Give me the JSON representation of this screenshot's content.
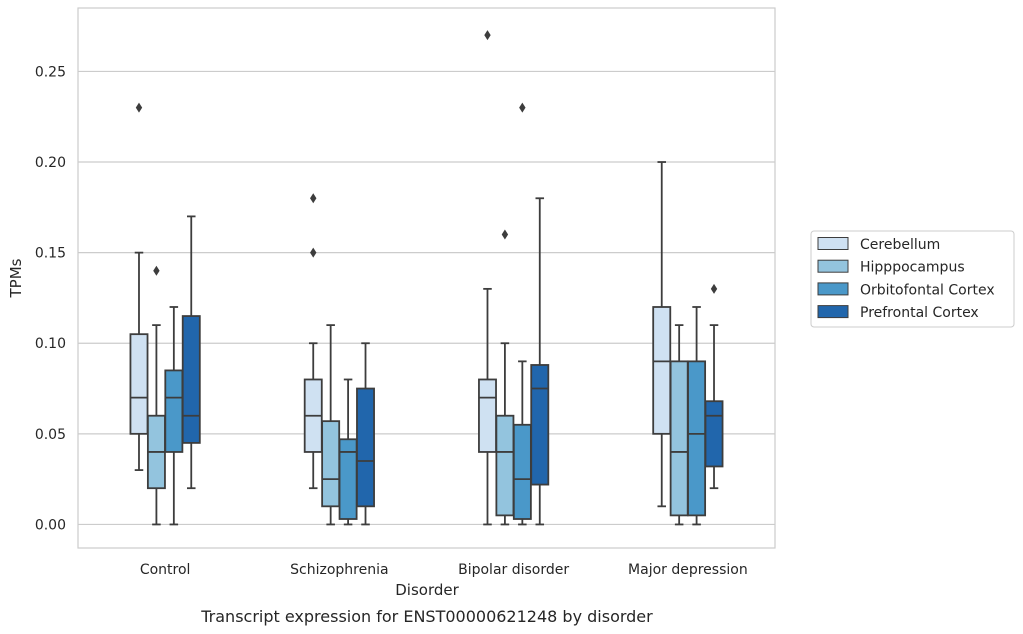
{
  "chart_data": {
    "type": "box",
    "title": "",
    "caption": "Transcript expression for ENST00000621248 by disorder",
    "xlabel": "Disorder",
    "ylabel": "TPMs",
    "ylim": [
      -0.013,
      0.285
    ],
    "yticks": [
      0.0,
      0.05,
      0.1,
      0.15,
      0.2,
      0.25
    ],
    "ytick_labels": [
      "0.00",
      "0.05",
      "0.10",
      "0.15",
      "0.20",
      "0.25"
    ],
    "categories": [
      "Control",
      "Schizophrenia",
      "Bipolar disorder",
      "Major depression"
    ],
    "grid": "horizontal",
    "legend_position": "right",
    "series": [
      {
        "name": "Cerebellum",
        "color": "#cfe1f2",
        "boxes": [
          {
            "whislo": 0.03,
            "q1": 0.05,
            "med": 0.07,
            "q3": 0.105,
            "whishi": 0.15,
            "fliers": [
              0.23
            ]
          },
          {
            "whislo": 0.02,
            "q1": 0.04,
            "med": 0.06,
            "q3": 0.08,
            "whishi": 0.1,
            "fliers": [
              0.15,
              0.18
            ]
          },
          {
            "whislo": 0.0,
            "q1": 0.04,
            "med": 0.07,
            "q3": 0.08,
            "whishi": 0.13,
            "fliers": [
              0.27
            ]
          },
          {
            "whislo": 0.01,
            "q1": 0.05,
            "med": 0.09,
            "q3": 0.12,
            "whishi": 0.2,
            "fliers": []
          }
        ]
      },
      {
        "name": "Hipppocampus",
        "color": "#93c4de",
        "boxes": [
          {
            "whislo": 0.0,
            "q1": 0.02,
            "med": 0.04,
            "q3": 0.06,
            "whishi": 0.11,
            "fliers": [
              0.14
            ]
          },
          {
            "whislo": 0.0,
            "q1": 0.01,
            "med": 0.025,
            "q3": 0.057,
            "whishi": 0.11,
            "fliers": []
          },
          {
            "whislo": 0.0,
            "q1": 0.005,
            "med": 0.04,
            "q3": 0.06,
            "whishi": 0.1,
            "fliers": [
              0.16
            ]
          },
          {
            "whislo": 0.0,
            "q1": 0.005,
            "med": 0.04,
            "q3": 0.09,
            "whishi": 0.11,
            "fliers": []
          }
        ]
      },
      {
        "name": "Orbitofontal Cortex",
        "color": "#4a98c9",
        "boxes": [
          {
            "whislo": 0.0,
            "q1": 0.04,
            "med": 0.07,
            "q3": 0.085,
            "whishi": 0.12,
            "fliers": []
          },
          {
            "whislo": 0.0,
            "q1": 0.003,
            "med": 0.04,
            "q3": 0.047,
            "whishi": 0.08,
            "fliers": []
          },
          {
            "whislo": 0.0,
            "q1": 0.003,
            "med": 0.025,
            "q3": 0.055,
            "whishi": 0.09,
            "fliers": [
              0.23
            ]
          },
          {
            "whislo": 0.0,
            "q1": 0.005,
            "med": 0.05,
            "q3": 0.09,
            "whishi": 0.12,
            "fliers": []
          }
        ]
      },
      {
        "name": "Prefrontal Cortex",
        "color": "#2166ac",
        "boxes": [
          {
            "whislo": 0.02,
            "q1": 0.045,
            "med": 0.06,
            "q3": 0.115,
            "whishi": 0.17,
            "fliers": []
          },
          {
            "whislo": 0.0,
            "q1": 0.01,
            "med": 0.035,
            "q3": 0.075,
            "whishi": 0.1,
            "fliers": []
          },
          {
            "whislo": 0.0,
            "q1": 0.022,
            "med": 0.075,
            "q3": 0.088,
            "whishi": 0.18,
            "fliers": []
          },
          {
            "whislo": 0.02,
            "q1": 0.032,
            "med": 0.06,
            "q3": 0.068,
            "whishi": 0.11,
            "fliers": [
              0.13
            ]
          }
        ]
      }
    ]
  }
}
